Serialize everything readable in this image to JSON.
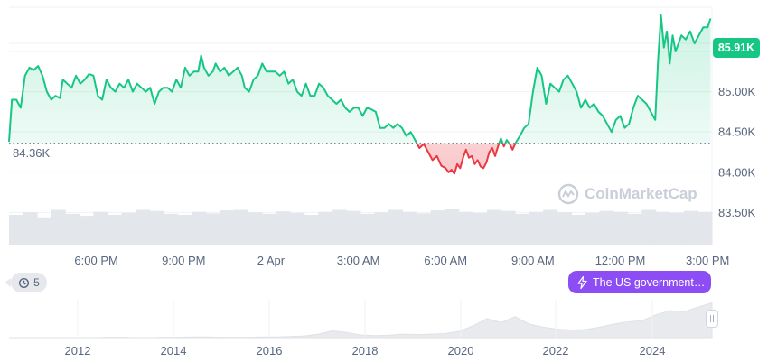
{
  "chart_data": {
    "type": "line",
    "current_price_label": "85.91K",
    "reference_label": "84.36K",
    "reference_value": 84.36,
    "y_ticks": [
      {
        "value": 85.5,
        "label": "85.50K"
      },
      {
        "value": 85.0,
        "label": "85.00K"
      },
      {
        "value": 84.5,
        "label": "84.50K"
      },
      {
        "value": 84.0,
        "label": "84.00K"
      },
      {
        "value": 83.5,
        "label": "83.50K"
      }
    ],
    "ylim": [
      83.1,
      86.05
    ],
    "x_ticks": [
      {
        "h": 3,
        "label": "6:00 PM"
      },
      {
        "h": 6,
        "label": "9:00 PM"
      },
      {
        "h": 9,
        "label": "2 Apr"
      },
      {
        "h": 12,
        "label": "3:00 AM"
      },
      {
        "h": 15,
        "label": "6:00 AM"
      },
      {
        "h": 18,
        "label": "9:00 AM"
      },
      {
        "h": 21,
        "label": "12:00 PM"
      },
      {
        "h": 24,
        "label": "3:00 PM"
      }
    ],
    "x_unit_note": "hours since 3:00 PM",
    "xlim": [
      0.0,
      24.15
    ],
    "series": [
      {
        "points": [
          [
            0.0,
            84.38
          ],
          [
            0.1,
            84.9
          ],
          [
            0.25,
            84.9
          ],
          [
            0.4,
            84.8
          ],
          [
            0.55,
            85.2
          ],
          [
            0.7,
            85.3
          ],
          [
            0.85,
            85.27
          ],
          [
            1.0,
            85.32
          ],
          [
            1.15,
            85.2
          ],
          [
            1.3,
            85.0
          ],
          [
            1.45,
            84.9
          ],
          [
            1.6,
            84.95
          ],
          [
            1.75,
            84.92
          ],
          [
            1.85,
            85.15
          ],
          [
            2.0,
            85.1
          ],
          [
            2.15,
            85.05
          ],
          [
            2.3,
            85.2
          ],
          [
            2.45,
            85.1
          ],
          [
            2.6,
            85.15
          ],
          [
            2.75,
            85.22
          ],
          [
            2.9,
            85.2
          ],
          [
            3.05,
            84.95
          ],
          [
            3.2,
            84.9
          ],
          [
            3.35,
            85.15
          ],
          [
            3.5,
            85.05
          ],
          [
            3.65,
            85.0
          ],
          [
            3.8,
            85.1
          ],
          [
            3.95,
            85.05
          ],
          [
            4.1,
            85.15
          ],
          [
            4.25,
            85.0
          ],
          [
            4.4,
            85.1
          ],
          [
            4.55,
            85.05
          ],
          [
            4.7,
            85.0
          ],
          [
            4.85,
            85.05
          ],
          [
            5.0,
            84.85
          ],
          [
            5.15,
            85.0
          ],
          [
            5.3,
            85.05
          ],
          [
            5.45,
            85.05
          ],
          [
            5.6,
            85.0
          ],
          [
            5.75,
            85.15
          ],
          [
            5.9,
            85.05
          ],
          [
            6.05,
            85.3
          ],
          [
            6.2,
            85.2
          ],
          [
            6.35,
            85.25
          ],
          [
            6.5,
            85.25
          ],
          [
            6.6,
            85.45
          ],
          [
            6.7,
            85.3
          ],
          [
            6.85,
            85.2
          ],
          [
            7.0,
            85.25
          ],
          [
            7.1,
            85.35
          ],
          [
            7.25,
            85.25
          ],
          [
            7.4,
            85.3
          ],
          [
            7.55,
            85.2
          ],
          [
            7.7,
            85.25
          ],
          [
            7.85,
            85.3
          ],
          [
            8.0,
            85.2
          ],
          [
            8.1,
            85.05
          ],
          [
            8.25,
            85.0
          ],
          [
            8.4,
            85.15
          ],
          [
            8.55,
            85.2
          ],
          [
            8.7,
            85.35
          ],
          [
            8.85,
            85.25
          ],
          [
            9.0,
            85.25
          ],
          [
            9.15,
            85.25
          ],
          [
            9.3,
            85.2
          ],
          [
            9.45,
            85.25
          ],
          [
            9.6,
            85.1
          ],
          [
            9.75,
            85.15
          ],
          [
            9.9,
            85.0
          ],
          [
            10.05,
            84.95
          ],
          [
            10.2,
            85.1
          ],
          [
            10.35,
            84.95
          ],
          [
            10.5,
            84.95
          ],
          [
            10.65,
            85.1
          ],
          [
            10.8,
            85.05
          ],
          [
            10.95,
            84.95
          ],
          [
            11.1,
            84.9
          ],
          [
            11.25,
            84.85
          ],
          [
            11.4,
            84.9
          ],
          [
            11.55,
            84.8
          ],
          [
            11.7,
            84.75
          ],
          [
            11.85,
            84.8
          ],
          [
            12.0,
            84.8
          ],
          [
            12.15,
            84.7
          ],
          [
            12.3,
            84.8
          ],
          [
            12.45,
            84.78
          ],
          [
            12.6,
            84.75
          ],
          [
            12.75,
            84.55
          ],
          [
            12.9,
            84.55
          ],
          [
            13.05,
            84.6
          ],
          [
            13.2,
            84.55
          ],
          [
            13.35,
            84.6
          ],
          [
            13.5,
            84.55
          ],
          [
            13.65,
            84.45
          ],
          [
            13.8,
            84.5
          ],
          [
            13.95,
            84.4
          ],
          [
            14.1,
            84.3
          ],
          [
            14.25,
            84.35
          ],
          [
            14.4,
            84.25
          ],
          [
            14.55,
            84.15
          ],
          [
            14.7,
            84.2
          ],
          [
            14.85,
            84.08
          ],
          [
            15.0,
            84.05
          ],
          [
            15.1,
            84.0
          ],
          [
            15.2,
            84.03
          ],
          [
            15.3,
            83.98
          ],
          [
            15.4,
            84.1
          ],
          [
            15.5,
            84.05
          ],
          [
            15.6,
            84.18
          ],
          [
            15.7,
            84.28
          ],
          [
            15.8,
            84.18
          ],
          [
            15.9,
            84.2
          ],
          [
            16.0,
            84.1
          ],
          [
            16.1,
            84.15
          ],
          [
            16.2,
            84.07
          ],
          [
            16.3,
            84.05
          ],
          [
            16.4,
            84.12
          ],
          [
            16.5,
            84.25
          ],
          [
            16.6,
            84.3
          ],
          [
            16.7,
            84.2
          ],
          [
            16.8,
            84.32
          ],
          [
            16.9,
            84.42
          ],
          [
            17.0,
            84.32
          ],
          [
            17.1,
            84.4
          ],
          [
            17.2,
            84.35
          ],
          [
            17.3,
            84.28
          ],
          [
            17.4,
            84.36
          ],
          [
            17.55,
            84.45
          ],
          [
            17.7,
            84.55
          ],
          [
            17.85,
            84.6
          ],
          [
            18.0,
            85.0
          ],
          [
            18.15,
            85.3
          ],
          [
            18.3,
            85.2
          ],
          [
            18.45,
            84.85
          ],
          [
            18.6,
            85.1
          ],
          [
            18.75,
            85.05
          ],
          [
            18.9,
            85.0
          ],
          [
            19.05,
            85.15
          ],
          [
            19.2,
            85.2
          ],
          [
            19.35,
            85.1
          ],
          [
            19.5,
            85.0
          ],
          [
            19.65,
            84.8
          ],
          [
            19.8,
            84.9
          ],
          [
            19.95,
            84.8
          ],
          [
            20.1,
            84.85
          ],
          [
            20.25,
            84.75
          ],
          [
            20.4,
            84.7
          ],
          [
            20.55,
            84.6
          ],
          [
            20.7,
            84.5
          ],
          [
            20.85,
            84.65
          ],
          [
            21.0,
            84.7
          ],
          [
            21.15,
            84.55
          ],
          [
            21.3,
            84.6
          ],
          [
            21.45,
            84.8
          ],
          [
            21.6,
            84.95
          ],
          [
            21.75,
            84.9
          ],
          [
            21.9,
            84.85
          ],
          [
            22.05,
            84.75
          ],
          [
            22.2,
            84.65
          ],
          [
            22.3,
            85.4
          ],
          [
            22.4,
            85.95
          ],
          [
            22.5,
            85.55
          ],
          [
            22.6,
            85.75
          ],
          [
            22.7,
            85.35
          ],
          [
            22.8,
            85.7
          ],
          [
            22.9,
            85.5
          ],
          [
            23.0,
            85.6
          ],
          [
            23.1,
            85.7
          ],
          [
            23.25,
            85.65
          ],
          [
            23.4,
            85.75
          ],
          [
            23.55,
            85.6
          ],
          [
            23.7,
            85.7
          ],
          [
            23.85,
            85.8
          ],
          [
            24.0,
            85.8
          ],
          [
            24.1,
            85.91
          ]
        ]
      }
    ],
    "colors": {
      "up": "#16c784",
      "down": "#ea3943",
      "fill_up": "#16c784",
      "fill_down": "#ea3943",
      "grid": "#eff2f5",
      "volume": "#e3e6ea",
      "overview_fill": "#e8eaed"
    },
    "volume": [
      0.6,
      0.65,
      0.55,
      0.7,
      0.62,
      0.58,
      0.66,
      0.6,
      0.64,
      0.7,
      0.68,
      0.62,
      0.6,
      0.66,
      0.63,
      0.69,
      0.7,
      0.65,
      0.62,
      0.67,
      0.64,
      0.6,
      0.66,
      0.7,
      0.68,
      0.62,
      0.65,
      0.7,
      0.66,
      0.63,
      0.69,
      0.72,
      0.66,
      0.64,
      0.7,
      0.68,
      0.62,
      0.66,
      0.7,
      0.65,
      0.6,
      0.64,
      0.68,
      0.66,
      0.62,
      0.7,
      0.66,
      0.64,
      0.68,
      0.66
    ],
    "overview": {
      "year_ticks": [
        "2012",
        "2014",
        "2016",
        "2018",
        "2020",
        "2022",
        "2024"
      ],
      "values": [
        0.0,
        0.0,
        0.0,
        0.0,
        0.0,
        0.0,
        0.0,
        0.01,
        0.01,
        0.0,
        0.0,
        0.01,
        0.01,
        0.02,
        0.02,
        0.01,
        0.01,
        0.01,
        0.02,
        0.02,
        0.03,
        0.05,
        0.1,
        0.2,
        0.15,
        0.08,
        0.06,
        0.07,
        0.1,
        0.09,
        0.1,
        0.12,
        0.18,
        0.35,
        0.55,
        0.45,
        0.6,
        0.4,
        0.3,
        0.25,
        0.22,
        0.24,
        0.3,
        0.4,
        0.45,
        0.5,
        0.65,
        0.8,
        0.75,
        0.9,
        1.0
      ]
    }
  },
  "events_chip": {
    "icon": "history-icon",
    "count": "5"
  },
  "news_chip": {
    "icon": "lightning-icon",
    "text": "The US government…"
  },
  "watermark": {
    "text": "CoinMarketCap"
  }
}
